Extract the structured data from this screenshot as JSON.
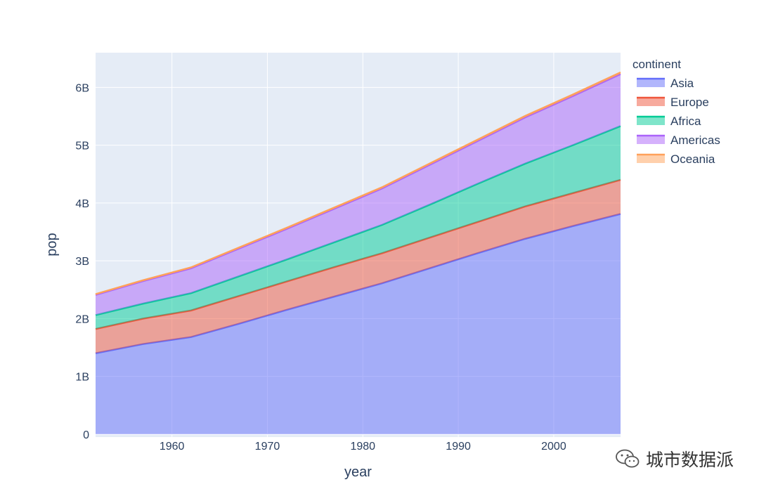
{
  "chart_data": {
    "type": "area",
    "xlabel": "year",
    "ylabel": "pop",
    "xlim": [
      1952,
      2007
    ],
    "ylim": [
      -0.05,
      6.6
    ],
    "x_ticks": [
      1960,
      1970,
      1980,
      1990,
      2000
    ],
    "y_ticks": [
      {
        "value": 0,
        "label": "0"
      },
      {
        "value": 1,
        "label": "1B"
      },
      {
        "value": 2,
        "label": "2B"
      },
      {
        "value": 3,
        "label": "3B"
      },
      {
        "value": 4,
        "label": "4B"
      },
      {
        "value": 5,
        "label": "5B"
      },
      {
        "value": 6,
        "label": "6B"
      }
    ],
    "grid": true,
    "legend_title": "continent",
    "legend_position": "top-right",
    "x": [
      1952,
      1957,
      1962,
      1967,
      1972,
      1977,
      1982,
      1987,
      1992,
      1997,
      2002,
      2007
    ],
    "series": [
      {
        "name": "Asia",
        "color": "#636efa",
        "values": [
          1.4,
          1.56,
          1.68,
          1.91,
          2.15,
          2.38,
          2.61,
          2.87,
          3.13,
          3.38,
          3.6,
          3.81
        ]
      },
      {
        "name": "Europe",
        "color": "#ef553b",
        "values": [
          0.42,
          0.44,
          0.46,
          0.48,
          0.49,
          0.51,
          0.52,
          0.53,
          0.54,
          0.56,
          0.57,
          0.59
        ]
      },
      {
        "name": "Africa",
        "color": "#00cc96",
        "values": [
          0.24,
          0.26,
          0.3,
          0.34,
          0.38,
          0.43,
          0.49,
          0.57,
          0.66,
          0.74,
          0.83,
          0.93
        ]
      },
      {
        "name": "Americas",
        "color": "#ab63fa",
        "values": [
          0.35,
          0.39,
          0.43,
          0.48,
          0.53,
          0.58,
          0.63,
          0.69,
          0.74,
          0.8,
          0.85,
          0.9
        ]
      },
      {
        "name": "Oceania",
        "color": "#ffa15a",
        "values": [
          0.013,
          0.014,
          0.016,
          0.017,
          0.019,
          0.02,
          0.021,
          0.023,
          0.024,
          0.026,
          0.027,
          0.029
        ]
      }
    ]
  },
  "watermark": {
    "text": "城市数据派",
    "icon": "wechat-icon"
  }
}
